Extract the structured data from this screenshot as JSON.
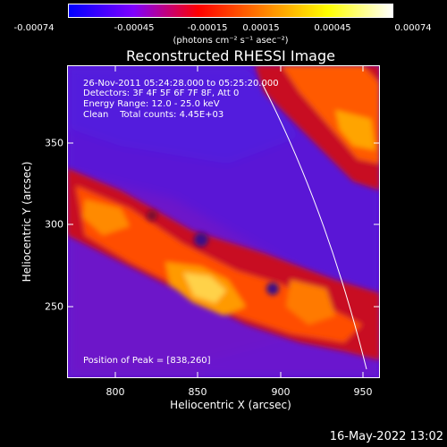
{
  "colorbar": {
    "ticks": [
      "-0.00074",
      "-0.00045",
      "-0.00015",
      "0.00015",
      "0.00045",
      "0.00074"
    ],
    "units": "(photons cm⁻² s⁻¹ asec⁻²)",
    "colors": [
      "#0000ff",
      "#7f00ff",
      "#ff0000",
      "#ff8000",
      "#ffff00",
      "#ffffff"
    ]
  },
  "title": "Reconstructed RHESSI Image",
  "annotations": {
    "time": "26-Nov-2011 05:24:28.000 to 05:25:20.000",
    "detectors": "Detectors: 3F 4F 5F 6F 7F 8F, Att 0",
    "energy": "Energy Range: 12.0 - 25.0 keV",
    "clean": "Clean    Total counts: 4.45E+03",
    "peak": "Position of Peak = [838,260]"
  },
  "axes": {
    "xlabel": "Heliocentric X (arcsec)",
    "ylabel": "Heliocentric Y (arcsec)",
    "xticks": [
      "800",
      "850",
      "900",
      "950"
    ],
    "yticks": [
      "350",
      "300",
      "250"
    ]
  },
  "footer": {
    "timestamp": "16-May-2022 13:02"
  }
}
